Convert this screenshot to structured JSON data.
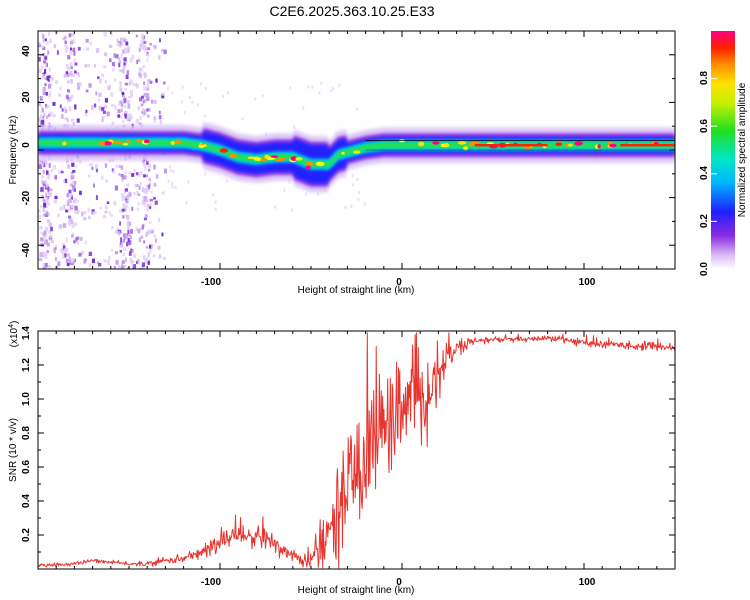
{
  "title": "C2E6.2025.363.10.25.E33",
  "chart_data": [
    {
      "type": "heatmap",
      "name": "spectrogram",
      "xlabel": "Height of straight line (km)",
      "ylabel": "Frequency (Hz)",
      "xlim": [
        -200,
        150
      ],
      "ylim": [
        -50,
        50
      ],
      "xticks": [
        -100,
        0,
        100
      ],
      "xtick_labels": [
        "-100",
        "0",
        "100"
      ],
      "yticks": [
        -40,
        -20,
        0,
        20,
        40
      ],
      "ytick_labels": [
        "-40",
        "-20",
        "0",
        "20",
        "40"
      ],
      "colorbar": {
        "label": "Normalized spectral amplitude",
        "range": [
          0,
          1
        ],
        "ticks": [
          0.0,
          0.2,
          0.4,
          0.6,
          0.8
        ],
        "tick_labels": [
          "0.0",
          "0.2",
          "0.4",
          "0.6",
          "0.8"
        ]
      },
      "ridge": {
        "description": "dominant spectral ridge (center frequency, Hz)",
        "x": [
          -200,
          -180,
          -160,
          -140,
          -120,
          -110,
          -100,
          -90,
          -80,
          -70,
          -60,
          -50,
          -40,
          -35,
          -30,
          -20,
          -10,
          0,
          10,
          20,
          40,
          60,
          80,
          90,
          100,
          120,
          150
        ],
        "y": [
          3,
          3,
          3,
          3,
          3,
          2,
          0,
          -3,
          -4,
          -3,
          -3,
          -6,
          -6,
          -2,
          -1,
          1,
          2,
          2,
          2,
          2,
          2,
          2,
          2,
          2,
          2,
          2,
          2
        ]
      },
      "scatter_region": {
        "x_range": [
          -200,
          -130
        ],
        "note": "diffuse low-amplitude energy at all frequencies"
      }
    },
    {
      "type": "line",
      "name": "snr",
      "xlabel": "Height of straight line (km)",
      "ylabel": "SNR (10 * v/v)",
      "scale_label": "(x10",
      "scale_exponent": "4",
      "scale_suffix": ")",
      "xlim": [
        -200,
        150
      ],
      "ylim": [
        0,
        1.4
      ],
      "xticks": [
        -100,
        0,
        100
      ],
      "xtick_labels": [
        "-100",
        "0",
        "100"
      ],
      "yticks": [
        0.2,
        0.4,
        0.6,
        0.8,
        1.0,
        1.2,
        1.4
      ],
      "ytick_labels": [
        "0.2",
        "0.4",
        "0.6",
        "0.8",
        "1.0",
        "1.2",
        "1.4"
      ],
      "series": [
        {
          "name": "SNR",
          "color": "#e8342e",
          "x": [
            -200,
            -180,
            -170,
            -160,
            -150,
            -140,
            -130,
            -120,
            -110,
            -100,
            -95,
            -90,
            -85,
            -80,
            -75,
            -70,
            -65,
            -60,
            -55,
            -50,
            -45,
            -40,
            -35,
            -30,
            -25,
            -20,
            -15,
            -10,
            -5,
            0,
            5,
            10,
            15,
            20,
            25,
            30,
            35,
            40,
            50,
            60,
            70,
            80,
            90,
            100,
            110,
            120,
            130,
            140,
            150
          ],
          "y": [
            0.02,
            0.03,
            0.05,
            0.04,
            0.03,
            0.03,
            0.05,
            0.06,
            0.1,
            0.15,
            0.2,
            0.22,
            0.18,
            0.2,
            0.17,
            0.15,
            0.12,
            0.08,
            0.05,
            0.05,
            0.1,
            0.2,
            0.35,
            0.5,
            0.6,
            0.7,
            0.8,
            0.85,
            0.9,
            0.9,
            1.0,
            0.95,
            1.05,
            1.15,
            1.25,
            1.3,
            1.32,
            1.34,
            1.35,
            1.35,
            1.35,
            1.36,
            1.35,
            1.33,
            1.32,
            1.32,
            1.31,
            1.31,
            1.3
          ],
          "noise_envelope_x": [
            -200,
            -150,
            -120,
            -100,
            -80,
            -60,
            -50,
            -40,
            -30,
            -20,
            -10,
            0,
            10,
            20,
            30,
            40,
            60,
            80,
            100,
            120,
            150
          ],
          "noise_envelope_y": [
            0.01,
            0.01,
            0.02,
            0.06,
            0.08,
            0.04,
            0.06,
            0.2,
            0.35,
            0.35,
            0.3,
            0.25,
            0.25,
            0.12,
            0.05,
            0.02,
            0.015,
            0.015,
            0.025,
            0.02,
            0.02
          ]
        }
      ]
    }
  ]
}
